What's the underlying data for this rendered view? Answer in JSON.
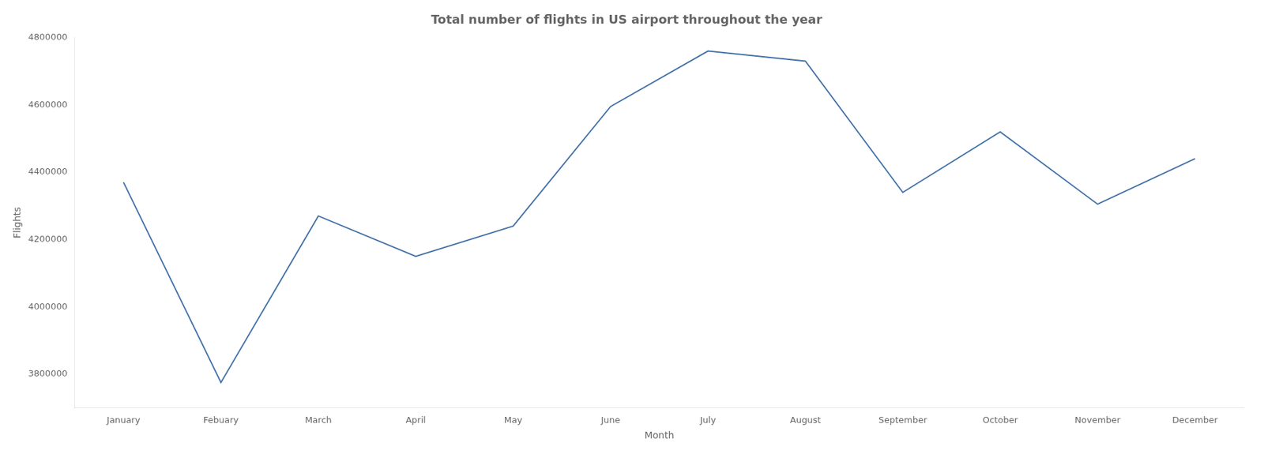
{
  "chart_data": {
    "type": "line",
    "title": "Total number of flights in US airport throughout the year",
    "xlabel": "Month",
    "ylabel": "Flights",
    "categories": [
      "January",
      "Febuary",
      "March",
      "April",
      "May",
      "June",
      "July",
      "August",
      "September",
      "October",
      "November",
      "December"
    ],
    "values": [
      4370000,
      3775000,
      4270000,
      4150000,
      4240000,
      4595000,
      4760000,
      4730000,
      4340000,
      4520000,
      4305000,
      4440000
    ],
    "color": "#4472a8",
    "ylim": [
      3700000,
      4800000
    ],
    "yticks": [
      3800000,
      4000000,
      4200000,
      4400000,
      4600000,
      4800000
    ],
    "grid": false
  }
}
